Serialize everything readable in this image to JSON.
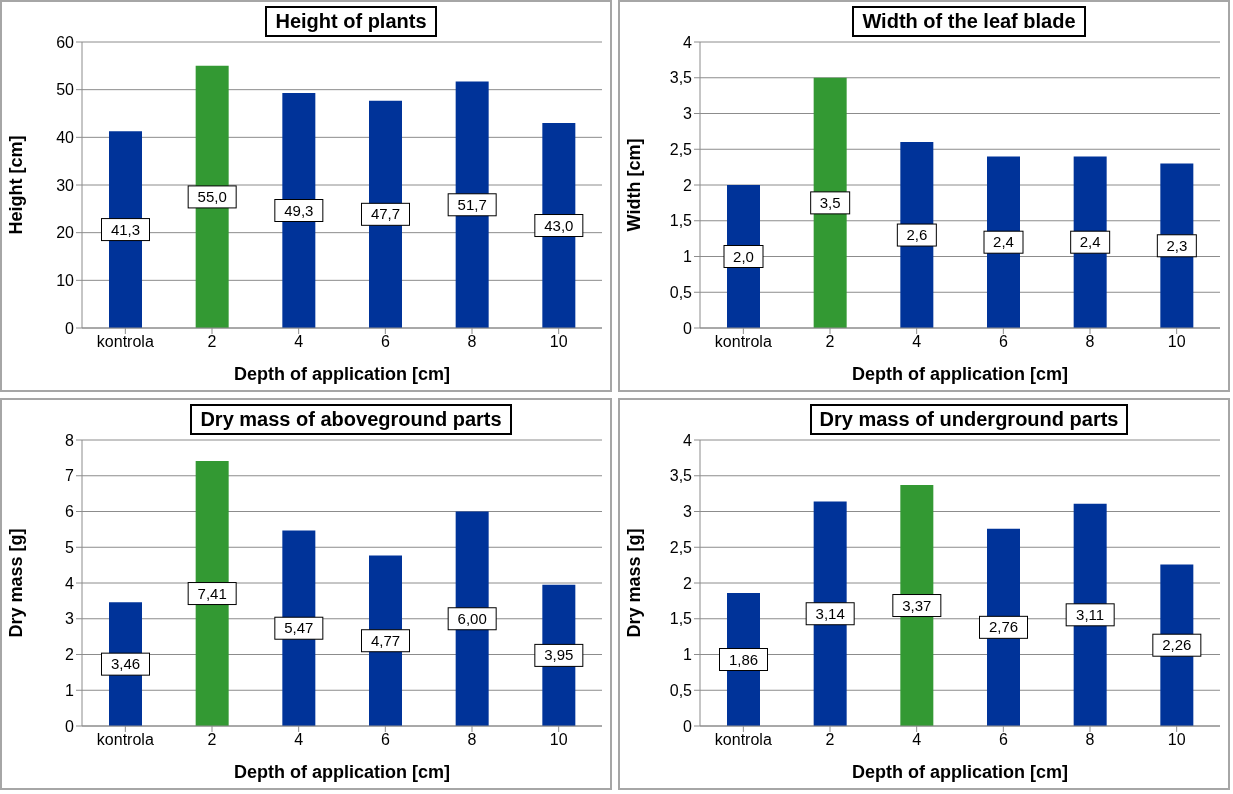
{
  "chart_data": [
    {
      "type": "bar",
      "title": "Height of plants",
      "xlabel": "Depth of application [cm]",
      "ylabel": "Height [cm]",
      "categories": [
        "kontrola",
        "2",
        "4",
        "6",
        "8",
        "10"
      ],
      "values": [
        41.3,
        55.0,
        49.3,
        47.7,
        51.7,
        43.0
      ],
      "value_labels": [
        "41,3",
        "55,0",
        "49,3",
        "47,7",
        "51,7",
        "43,0"
      ],
      "colors": [
        "#003399",
        "#339933",
        "#003399",
        "#003399",
        "#003399",
        "#003399"
      ],
      "ylim": [
        0,
        60
      ],
      "yticks": [
        0,
        10,
        20,
        30,
        40,
        50,
        60
      ],
      "grid": "y"
    },
    {
      "type": "bar",
      "title": "Width of the leaf blade",
      "xlabel": "Depth of application [cm]",
      "ylabel": "Width [cm]",
      "categories": [
        "kontrola",
        "2",
        "4",
        "6",
        "8",
        "10"
      ],
      "values": [
        2.0,
        3.5,
        2.6,
        2.4,
        2.4,
        2.3
      ],
      "value_labels": [
        "2,0",
        "3,5",
        "2,6",
        "2,4",
        "2,4",
        "2,3"
      ],
      "colors": [
        "#003399",
        "#339933",
        "#003399",
        "#003399",
        "#003399",
        "#003399"
      ],
      "ylim": [
        0,
        4
      ],
      "yticks": [
        0,
        {
          "value": 0.5,
          "label": "0,5"
        },
        1,
        {
          "value": 1.5,
          "label": "1,5"
        },
        2,
        {
          "value": 2.5,
          "label": "2,5"
        },
        3,
        {
          "value": 3.5,
          "label": "3,5"
        },
        4
      ],
      "grid": "y"
    },
    {
      "type": "bar",
      "title": "Dry mass of aboveground parts",
      "xlabel": "Depth of application [cm]",
      "ylabel": "Dry mass [g]",
      "categories": [
        "kontrola",
        "2",
        "4",
        "6",
        "8",
        "10"
      ],
      "values": [
        3.46,
        7.41,
        5.47,
        4.77,
        6.0,
        3.95
      ],
      "value_labels": [
        "3,46",
        "7,41",
        "5,47",
        "4,77",
        "6,00",
        "3,95"
      ],
      "colors": [
        "#003399",
        "#339933",
        "#003399",
        "#003399",
        "#003399",
        "#003399"
      ],
      "ylim": [
        0,
        8
      ],
      "yticks": [
        0,
        1,
        2,
        3,
        4,
        5,
        6,
        7,
        8
      ],
      "grid": "y"
    },
    {
      "type": "bar",
      "title": "Dry mass of underground parts",
      "xlabel": "Depth of application [cm]",
      "ylabel": "Dry mass [g]",
      "categories": [
        "kontrola",
        "2",
        "4",
        "6",
        "8",
        "10"
      ],
      "values": [
        1.86,
        3.14,
        3.37,
        2.76,
        3.11,
        2.26
      ],
      "value_labels": [
        "1,86",
        "3,14",
        "3,37",
        "2,76",
        "3,11",
        "2,26"
      ],
      "colors": [
        "#003399",
        "#003399",
        "#339933",
        "#003399",
        "#003399",
        "#003399"
      ],
      "ylim": [
        0,
        4
      ],
      "yticks": [
        0,
        {
          "value": 0.5,
          "label": "0,5"
        },
        1,
        {
          "value": 1.5,
          "label": "1,5"
        },
        2,
        {
          "value": 2.5,
          "label": "2,5"
        },
        3,
        {
          "value": 3.5,
          "label": "3,5"
        },
        4
      ],
      "grid": "y"
    }
  ]
}
